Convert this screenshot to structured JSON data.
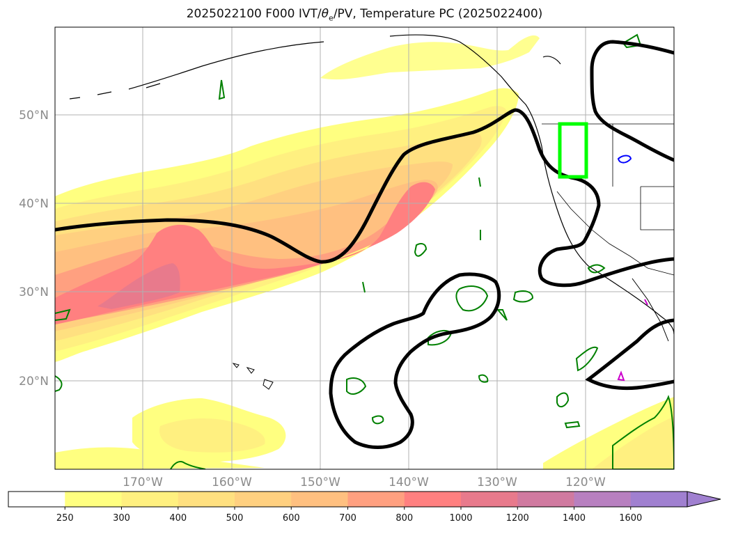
{
  "map": {
    "title_main": "2025022100 F000 IVT/",
    "title_theta": "θ",
    "title_theta_sub": "e",
    "title_rest": "/PV, Temperature PC (2025022400)",
    "lat_labels": [
      "50°N",
      "40°N",
      "30°N",
      "20°N"
    ],
    "lon_labels": [
      "170°W",
      "160°W",
      "150°W",
      "140°W",
      "130°W",
      "120°W"
    ],
    "colorbar": {
      "ticks": [
        "250",
        "300",
        "400",
        "500",
        "600",
        "700",
        "800",
        "1000",
        "1200",
        "1400",
        "1600"
      ],
      "colors": [
        "#ffffff",
        "#ffff80",
        "#fff080",
        "#ffe080",
        "#ffd080",
        "#ffc080",
        "#ffa080",
        "#ff8080",
        "#e87a8c",
        "#d07aa0",
        "#b880c0",
        "#a080d0"
      ],
      "extend": "max"
    },
    "colors": {
      "pv_contour": "#008000",
      "temperature_pc": "#000000",
      "region_box": "#00ff00",
      "blue_contour": "#0000ff",
      "magenta_contour": "#cc00cc"
    }
  }
}
